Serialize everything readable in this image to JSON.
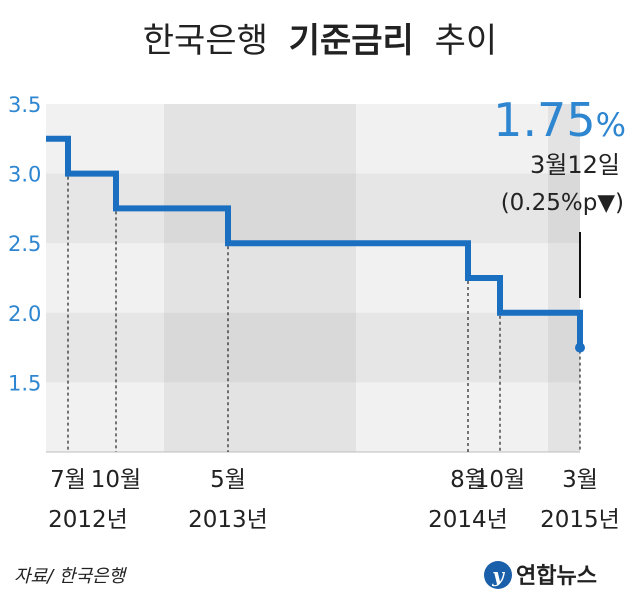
{
  "title": {
    "part1": "한국은행",
    "part2": "기준금리",
    "part3": "추이"
  },
  "source": "자료/ 한국은행",
  "logo_text": "연합뉴스",
  "callout": {
    "value": "1.75",
    "unit": "%",
    "date": "3월12일",
    "change": "(0.25%p▼)"
  },
  "colors": {
    "line": "#1a6fc0",
    "accent_text": "#2e86d0",
    "band_dark": "#e6e6e6",
    "band_light": "#f1f1f1",
    "text": "#222222"
  },
  "chart_data": {
    "type": "line",
    "step": true,
    "title": "한국은행 기준금리 추이",
    "ylim": [
      1.0,
      3.5
    ],
    "yticks": [
      "3.5",
      "3.0",
      "2.5",
      "2.0",
      "1.5"
    ],
    "grid": false,
    "x_month_labels": [
      "7월",
      "10월",
      "5월",
      "8월",
      "10월",
      "3월"
    ],
    "x_year_labels": [
      "2012년",
      "2013년",
      "2014년",
      "2015년"
    ],
    "series": [
      {
        "points": [
          {
            "date": "2012-01",
            "value": 3.25
          },
          {
            "date": "2012-07",
            "value": 3.0
          },
          {
            "date": "2012-10",
            "value": 2.75
          },
          {
            "date": "2013-05",
            "value": 2.5
          },
          {
            "date": "2014-08",
            "value": 2.25
          },
          {
            "date": "2014-10",
            "value": 2.0
          },
          {
            "date": "2015-03",
            "value": 1.75
          }
        ]
      }
    ]
  }
}
